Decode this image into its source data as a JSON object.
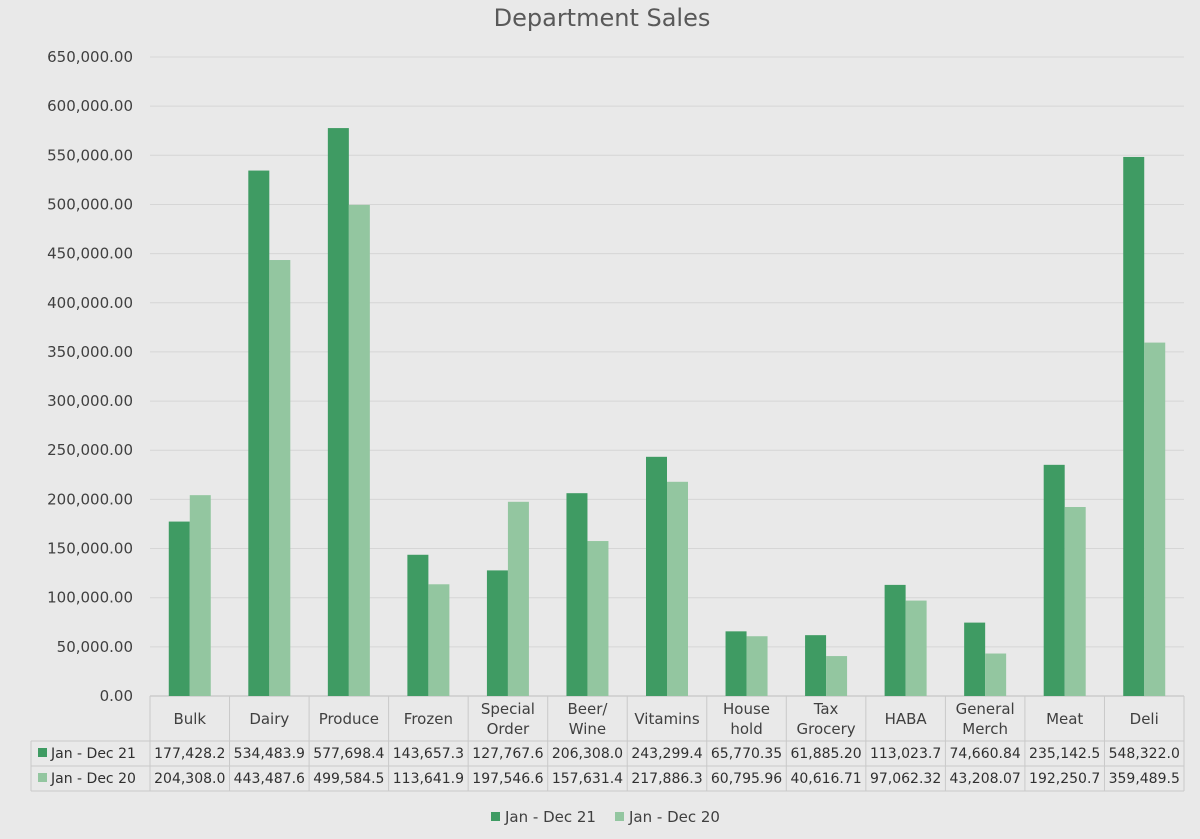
{
  "chart_data": {
    "type": "bar",
    "title": "Department Sales",
    "categories": [
      [
        "Bulk"
      ],
      [
        "Dairy"
      ],
      [
        "Produce"
      ],
      [
        "Frozen"
      ],
      [
        "Special",
        "Order"
      ],
      [
        "Beer/",
        "Wine"
      ],
      [
        "Vitamins"
      ],
      [
        "House",
        "hold"
      ],
      [
        "Tax",
        "Grocery"
      ],
      [
        "HABA"
      ],
      [
        "General",
        "Merch"
      ],
      [
        "Meat"
      ],
      [
        "Deli"
      ]
    ],
    "ylim": [
      0,
      650000
    ],
    "y_tick_labels": [
      "0.00",
      "50,000.00",
      "100,000.00",
      "150,000.00",
      "200,000.00",
      "250,000.00",
      "300,000.00",
      "350,000.00",
      "400,000.00",
      "450,000.00",
      "500,000.00",
      "550,000.00",
      "600,000.00",
      "650,000.00"
    ],
    "grid": true,
    "legend_position": "bottom",
    "data_table": true,
    "series": [
      {
        "name": "Jan - Dec 21",
        "color": "#3f9b63",
        "values": [
          177428.2,
          534483.9,
          577698.4,
          143657.3,
          127767.6,
          206308.0,
          243299.4,
          65770.35,
          61885.2,
          113023.7,
          74660.84,
          235142.5,
          548322.0
        ],
        "table_labels": [
          "177,428.2",
          "534,483.9",
          "577,698.4",
          "143,657.3",
          "127,767.6",
          "206,308.0",
          "243,299.4",
          "65,770.35",
          "61,885.20",
          "113,023.7",
          "74,660.84",
          "235,142.5",
          "548,322.0"
        ]
      },
      {
        "name": "Jan - Dec 20",
        "color": "#93c6a0",
        "values": [
          204308.0,
          443487.6,
          499584.5,
          113641.9,
          197546.6,
          157631.4,
          217886.3,
          60795.96,
          40616.71,
          97062.32,
          43208.07,
          192250.7,
          359489.5
        ],
        "table_labels": [
          "204,308.0",
          "443,487.6",
          "499,584.5",
          "113,641.9",
          "197,546.6",
          "157,631.4",
          "217,886.3",
          "60,795.96",
          "40,616.71",
          "97,062.32",
          "43,208.07",
          "192,250.7",
          "359,489.5"
        ]
      }
    ]
  }
}
